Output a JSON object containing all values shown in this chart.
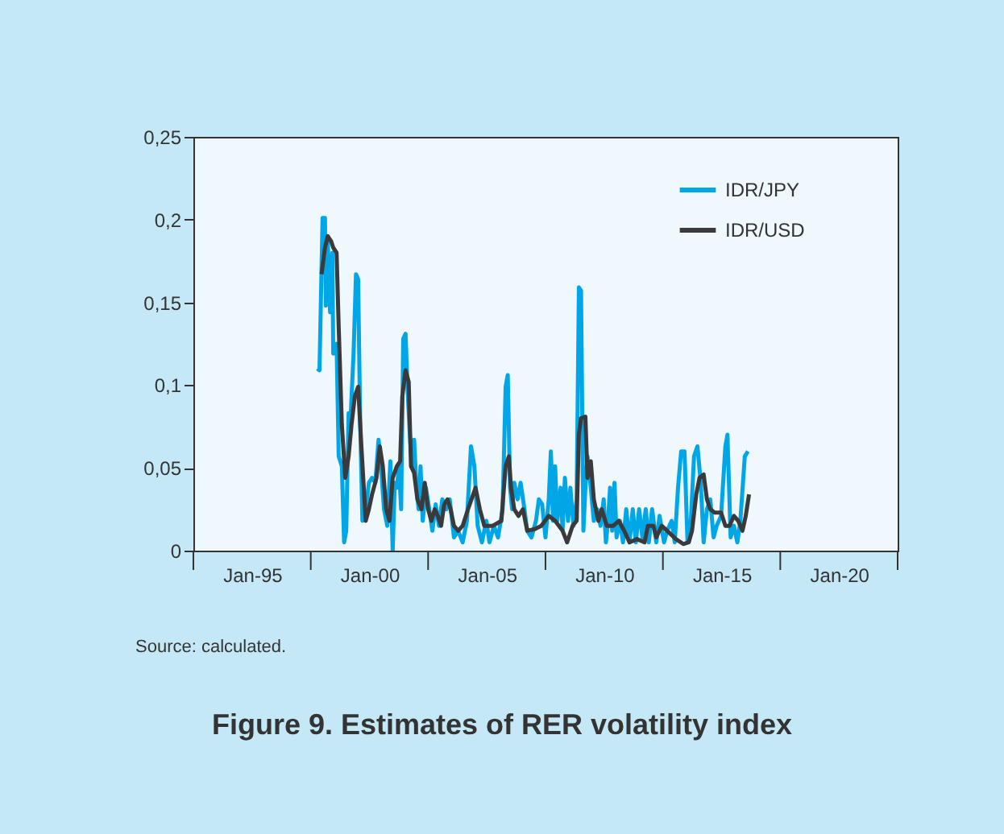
{
  "chart_data": {
    "type": "line",
    "title": "Figure 9. Estimates of RER volatility index",
    "annotations": [
      "Source: calculated."
    ],
    "legend": "top right",
    "grid": false,
    "xlim": [
      "1992-07-01",
      "2022-07-01"
    ],
    "xticks": [
      {
        "value": "1992-07-01",
        "label": null
      },
      {
        "value": "1995-01-01",
        "label": "Jan-95"
      },
      {
        "value": "1997-07-01",
        "label": null
      },
      {
        "value": "2000-01-01",
        "label": "Jan-00"
      },
      {
        "value": "2002-07-01",
        "label": null
      },
      {
        "value": "2005-01-01",
        "label": "Jan-05"
      },
      {
        "value": "2007-07-01",
        "label": null
      },
      {
        "value": "2010-01-01",
        "label": "Jan-10"
      },
      {
        "value": "2012-07-01",
        "label": null
      },
      {
        "value": "2015-01-01",
        "label": "Jan-15"
      },
      {
        "value": "2017-07-01",
        "label": null
      },
      {
        "value": "2020-01-01",
        "label": "Jan-20"
      },
      {
        "value": "2022-07-01",
        "label": null
      }
    ],
    "ylim": [
      0,
      0.25
    ],
    "yticks": [
      0,
      {
        "value": 0.05,
        "label": "0,05"
      },
      {
        "value": 0.1,
        "label": "0,1"
      },
      {
        "value": 0.15,
        "label": "0,15"
      },
      {
        "value": 0.2,
        "label": "0,2"
      },
      {
        "value": 0.25,
        "label": "0,25"
      }
    ],
    "series": [
      {
        "name": "IDR/JPY",
        "color": "#00a6e6",
        "x": [
          "1997-10-11",
          "1997-11-14",
          "1998-01-01",
          "1998-02-07",
          "1998-02-21",
          "1998-03-23",
          "1998-04-28",
          "1998-06-02",
          "1998-06-16",
          "1998-08-07",
          "1998-09-09",
          "1998-10-28",
          "1998-12-02",
          "1999-01-04",
          "1999-02-10",
          "1999-03-13",
          "1999-04-28",
          "1999-06-05",
          "1999-07-08",
          "1999-08-10",
          "1999-09-13",
          "1999-11-03",
          "1999-12-23",
          "2000-02-10",
          "2000-04-01",
          "2000-05-21",
          "2000-06-23",
          "2000-08-14",
          "2000-10-04",
          "2000-11-21",
          "2000-12-27",
          "2001-01-28",
          "2001-03-02",
          "2001-04-04",
          "2001-05-07",
          "2001-06-09",
          "2001-07-15",
          "2001-08-17",
          "2001-09-20",
          "2001-10-22",
          "2001-11-25",
          "2002-01-01",
          "2002-02-03",
          "2002-03-05",
          "2002-04-08",
          "2002-05-28",
          "2002-07-19",
          "2002-09-05",
          "2002-10-26",
          "2002-12-16",
          "2003-02-07",
          "2003-04-11",
          "2003-06-02",
          "2003-08-07",
          "2003-10-11",
          "2003-12-20",
          "2004-02-25",
          "2004-04-28",
          "2004-06-20",
          "2004-08-10",
          "2004-10-15",
          "2004-12-23",
          "2005-02-10",
          "2005-04-19",
          "2005-06-23",
          "2005-09-02",
          "2005-10-19",
          "2005-11-21",
          "2005-12-27",
          "2006-01-28",
          "2006-03-02",
          "2006-04-22",
          "2006-06-09",
          "2006-07-28",
          "2006-09-20",
          "2006-11-25",
          "2007-02-03",
          "2007-03-20",
          "2007-05-10",
          "2007-07-01",
          "2007-08-21",
          "2007-09-23",
          "2007-10-26",
          "2007-11-28",
          "2008-01-01",
          "2008-02-21",
          "2008-03-23",
          "2008-04-28",
          "2008-06-16",
          "2008-07-22",
          "2008-09-09",
          "2008-10-28",
          "2008-12-02",
          "2009-01-04",
          "2009-02-10",
          "2009-03-13",
          "2009-04-15",
          "2009-06-05",
          "2009-07-22",
          "2009-09-13",
          "2009-11-03",
          "2009-12-23",
          "2010-01-26",
          "2010-02-28",
          "2010-04-01",
          "2010-05-03",
          "2010-06-09",
          "2010-07-11",
          "2010-09-02",
          "2010-10-19",
          "2010-12-09",
          "2011-01-28",
          "2011-03-20",
          "2011-05-07",
          "2011-06-27",
          "2011-08-17",
          "2011-10-08",
          "2011-11-25",
          "2012-01-15",
          "2012-03-20",
          "2012-05-10",
          "2012-07-19",
          "2012-09-05",
          "2012-11-14",
          "2013-01-01",
          "2013-02-21",
          "2013-04-11",
          "2013-06-02",
          "2013-07-19",
          "2013-09-09",
          "2013-10-28",
          "2013-12-20",
          "2014-02-10",
          "2014-03-27",
          "2014-05-17",
          "2014-07-08",
          "2014-08-28",
          "2014-10-15",
          "2014-12-23",
          "2015-02-28",
          "2015-04-01",
          "2015-05-21",
          "2015-07-11",
          "2015-09-02",
          "2015-10-19",
          "2015-12-27",
          "2016-02-14"
        ],
        "values": [
          0.11,
          0.109,
          0.201,
          0.201,
          0.148,
          0.187,
          0.144,
          0.18,
          0.119,
          0.125,
          0.057,
          0.051,
          0.005,
          0.012,
          0.083,
          0.08,
          0.119,
          0.167,
          0.164,
          0.076,
          0.018,
          0.025,
          0.041,
          0.044,
          0.041,
          0.067,
          0.054,
          0.025,
          0.015,
          0.054,
          0,
          0.041,
          0.038,
          0.051,
          0.025,
          0.128,
          0.131,
          0.096,
          0.07,
          0.051,
          0.067,
          0.038,
          0.025,
          0.051,
          0.018,
          0.038,
          0.025,
          0.012,
          0.028,
          0.015,
          0.031,
          0.025,
          0.031,
          0.008,
          0.012,
          0.005,
          0.018,
          0.063,
          0.051,
          0.015,
          0.005,
          0.018,
          0.005,
          0.015,
          0.008,
          0.025,
          0.099,
          0.106,
          0.038,
          0.025,
          0.041,
          0.031,
          0.041,
          0.028,
          0.012,
          0.008,
          0.018,
          0.031,
          0.028,
          0.008,
          0.031,
          0.06,
          0.018,
          0.051,
          0.018,
          0.038,
          0.012,
          0.044,
          0.018,
          0.038,
          0.015,
          0.031,
          0.159,
          0.157,
          0.012,
          0.038,
          0.057,
          0.038,
          0.018,
          0.025,
          0.015,
          0.031,
          0.005,
          0.018,
          0.038,
          0.012,
          0.041,
          0.008,
          0.018,
          0.005,
          0.025,
          0.005,
          0.025,
          0.005,
          0.025,
          0.008,
          0.025,
          0.005,
          0.025,
          0.005,
          0.021,
          0.005,
          0.012,
          0.018,
          0.005,
          0.038,
          0.06,
          0.06,
          0.005,
          0.018,
          0.057,
          0.063,
          0.041,
          0.005,
          0.025,
          0.031,
          0.008,
          0.015,
          0.021,
          0.063,
          0.07,
          0.008,
          0.015,
          0.005,
          0.018,
          0.057,
          0.06
        ]
      },
      {
        "name": "IDR/USD",
        "color": "#3a3a3c",
        "x": [
          "1997-12-16",
          "1998-02-07",
          "1998-03-23",
          "1998-05-14",
          "1998-06-16",
          "1998-08-07",
          "1998-09-09",
          "1998-10-28",
          "1998-12-20",
          "1999-02-10",
          "1999-03-27",
          "1999-05-17",
          "1999-07-08",
          "1999-08-28",
          "1999-11-03",
          "1999-12-23",
          "2000-02-10",
          "2000-04-19",
          "2000-06-09",
          "2000-07-26",
          "2000-09-16",
          "2000-11-07",
          "2000-12-27",
          "2001-03-02",
          "2001-04-22",
          "2001-05-25",
          "2001-07-15",
          "2001-09-02",
          "2001-10-08",
          "2001-11-25",
          "2002-01-15",
          "2002-03-20",
          "2002-05-10",
          "2002-07-01",
          "2002-08-21",
          "2002-10-11",
          "2002-11-28",
          "2003-01-19",
          "2003-03-09",
          "2003-04-28",
          "2003-06-16",
          "2003-08-07",
          "2003-10-11",
          "2003-12-20",
          "2004-03-13",
          "2004-07-08",
          "2004-09-13",
          "2004-11-21",
          "2005-04-01",
          "2005-08-14",
          "2005-10-19",
          "2005-12-09",
          "2006-01-11",
          "2006-03-02",
          "2006-05-07",
          "2006-07-15",
          "2006-09-20",
          "2007-01-15",
          "2007-04-26",
          "2007-08-21",
          "2007-11-28",
          "2008-03-23",
          "2008-06-02",
          "2008-08-25",
          "2008-10-28",
          "2008-12-02",
          "2009-01-04",
          "2009-03-13",
          "2009-04-15",
          "2009-06-05",
          "2009-07-22",
          "2009-10-01",
          "2009-11-21",
          "2010-02-10",
          "2010-05-21",
          "2010-08-14",
          "2010-11-07",
          "2011-01-28",
          "2011-05-25",
          "2011-09-20",
          "2011-11-10",
          "2012-02-03",
          "2012-03-20",
          "2012-06-13",
          "2012-09-05",
          "2013-01-19",
          "2013-05-14",
          "2013-08-07",
          "2013-09-27",
          "2013-12-02",
          "2014-01-22",
          "2014-03-27",
          "2014-05-17",
          "2014-07-08",
          "2014-09-13",
          "2014-12-23",
          "2015-02-28",
          "2015-05-03",
          "2015-07-11",
          "2015-09-16",
          "2015-11-21",
          "2016-01-11",
          "2016-03-02"
        ],
        "values": [
          0.167,
          0.183,
          0.19,
          0.187,
          0.183,
          0.18,
          0.135,
          0.076,
          0.044,
          0.057,
          0.076,
          0.093,
          0.099,
          0.063,
          0.018,
          0.025,
          0.034,
          0.044,
          0.063,
          0.051,
          0.025,
          0.018,
          0.044,
          0.051,
          0.054,
          0.093,
          0.109,
          0.102,
          0.051,
          0.047,
          0.031,
          0.025,
          0.041,
          0.025,
          0.018,
          0.025,
          0.021,
          0.015,
          0.028,
          0.031,
          0.025,
          0.015,
          0.012,
          0.015,
          0.025,
          0.038,
          0.025,
          0.015,
          0.015,
          0.018,
          0.051,
          0.057,
          0.038,
          0.025,
          0.021,
          0.025,
          0.012,
          0.013,
          0.015,
          0.021,
          0.018,
          0.012,
          0.005,
          0.015,
          0.018,
          0.07,
          0.08,
          0.081,
          0.044,
          0.054,
          0.031,
          0.018,
          0.025,
          0.015,
          0.015,
          0.018,
          0.012,
          0.005,
          0.007,
          0.005,
          0.015,
          0.015,
          0.008,
          0.015,
          0.012,
          0.007,
          0.004,
          0.005,
          0.012,
          0.034,
          0.044,
          0.046,
          0.031,
          0.025,
          0.023,
          0.023,
          0.015,
          0.015,
          0.021,
          0.018,
          0.012,
          0.021,
          0.034
        ]
      }
    ]
  }
}
